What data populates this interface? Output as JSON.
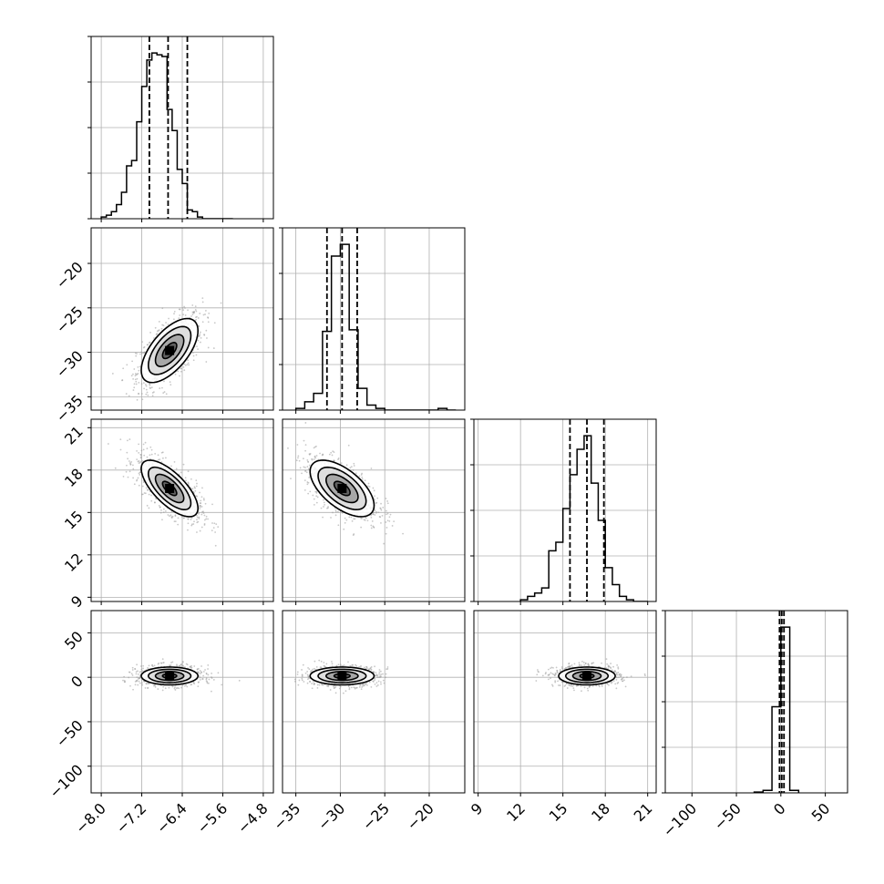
{
  "chart_data": {
    "type": "corner",
    "params": [
      {
        "lim": [
          -8.2,
          -4.6
        ],
        "ticks": [
          -8.0,
          -7.2,
          -6.4,
          -5.6,
          -4.8
        ],
        "tick_labels": [
          "−8.0",
          "−7.2",
          "−6.4",
          "−5.6",
          "−4.8"
        ],
        "quantiles": [
          -7.05,
          -6.68,
          -6.3
        ]
      },
      {
        "lim": [
          -36.5,
          -16.0
        ],
        "ticks": [
          -35,
          -30,
          -25,
          -20
        ],
        "tick_labels": [
          "−35",
          "−30",
          "−25",
          "−20"
        ],
        "quantiles": [
          -31.5,
          -29.8,
          -28.1
        ]
      },
      {
        "lim": [
          8.7,
          21.6
        ],
        "ticks": [
          9,
          12,
          15,
          18,
          21
        ],
        "tick_labels": [
          "9",
          "12",
          "15",
          "18",
          "21"
        ],
        "quantiles": [
          15.5,
          16.7,
          17.9
        ]
      },
      {
        "lim": [
          -130,
          75
        ],
        "ticks": [
          -100,
          -50,
          0,
          50
        ],
        "tick_labels": [
          "−100",
          "−50",
          "0",
          "50"
        ],
        "quantiles": [
          -1.5,
          1.0,
          3.5
        ]
      }
    ],
    "histograms": [
      {
        "bins": [
          -8.0,
          -7.9,
          -7.8,
          -7.7,
          -7.6,
          -7.5,
          -7.4,
          -7.3,
          -7.2,
          -7.1,
          -7.0,
          -6.9,
          -6.8,
          -6.7,
          -6.6,
          -6.5,
          -6.4,
          -6.3,
          -6.2,
          -6.1,
          -6.0,
          -5.9,
          -5.8,
          -5.7,
          -5.6,
          -5.5,
          -5.4
        ],
        "counts": [
          0.01,
          0.02,
          0.04,
          0.08,
          0.15,
          0.3,
          0.33,
          0.55,
          0.75,
          0.9,
          0.94,
          0.93,
          0.92,
          0.62,
          0.5,
          0.28,
          0.2,
          0.05,
          0.04,
          0.01,
          0.0,
          0.0,
          0.0,
          0.0,
          0.0,
          0.0
        ]
      },
      {
        "bins": [
          -35,
          -34,
          -33,
          -32,
          -31,
          -30,
          -29,
          -28,
          -27,
          -26,
          -25,
          -24,
          -23,
          -22,
          -21,
          -20,
          -19,
          -18,
          -17
        ],
        "counts": [
          0.01,
          0.05,
          0.1,
          0.47,
          0.92,
          0.99,
          0.48,
          0.13,
          0.03,
          0.01,
          0.0,
          0.0,
          0.0,
          0.0,
          0.0,
          0.0,
          0.01,
          0.0
        ]
      },
      {
        "bins": [
          12.0,
          12.5,
          13.0,
          13.5,
          14.0,
          14.5,
          15.0,
          15.5,
          16.0,
          16.5,
          17.0,
          17.5,
          18.0,
          18.5,
          19.0,
          19.5,
          20.0,
          20.5,
          21.0
        ],
        "counts": [
          0.01,
          0.03,
          0.05,
          0.08,
          0.3,
          0.35,
          0.55,
          0.75,
          0.9,
          0.98,
          0.7,
          0.48,
          0.2,
          0.1,
          0.03,
          0.01,
          0.0,
          0.0
        ]
      },
      {
        "bins": [
          -30,
          -20,
          -10,
          0,
          10,
          20
        ],
        "counts": [
          0.005,
          0.015,
          0.52,
          1.0,
          0.015
        ]
      }
    ],
    "pairs": [
      {
        "row": 1,
        "col": 0,
        "mean": [
          -6.65,
          -29.8
        ],
        "sd": [
          0.28,
          1.8
        ],
        "rho": 0.62
      },
      {
        "row": 2,
        "col": 0,
        "mean": [
          -6.65,
          16.7
        ],
        "sd": [
          0.28,
          1.0
        ],
        "rho": -0.7
      },
      {
        "row": 2,
        "col": 1,
        "mean": [
          -29.8,
          16.7
        ],
        "sd": [
          1.8,
          1.0
        ],
        "rho": -0.6
      },
      {
        "row": 3,
        "col": 0,
        "mean": [
          -6.65,
          1.5
        ],
        "sd": [
          0.28,
          5.0
        ],
        "rho": 0.0
      },
      {
        "row": 3,
        "col": 1,
        "mean": [
          -29.8,
          1.5
        ],
        "sd": [
          1.8,
          5.0
        ],
        "rho": 0.0
      },
      {
        "row": 3,
        "col": 2,
        "mean": [
          16.7,
          1.5
        ],
        "sd": [
          1.0,
          5.0
        ],
        "rho": 0.0
      }
    ],
    "contour_levels_sigma": [
      0.5,
      1.0,
      1.5,
      2.0
    ],
    "grid": true,
    "colors": {
      "line": "#000000",
      "points": "#9a9a9a",
      "grid": "#b0b0b0",
      "fill": "#6e6e6e"
    }
  }
}
